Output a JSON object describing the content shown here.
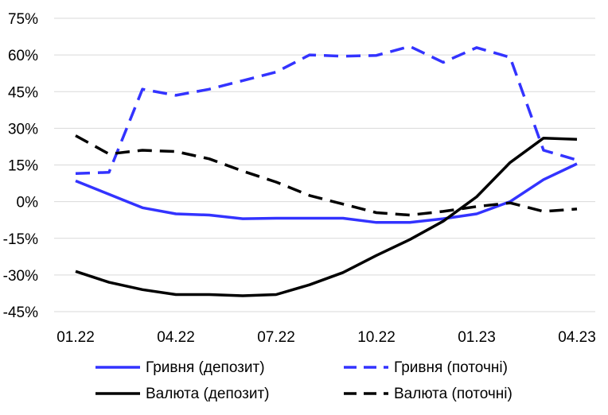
{
  "chart_data": {
    "type": "line",
    "title": "",
    "xlabel": "",
    "ylabel": "",
    "ylim": [
      -45,
      75
    ],
    "y_ticks": [
      75,
      60,
      45,
      30,
      15,
      0,
      -15,
      -30,
      -45
    ],
    "y_tick_labels": [
      "75%",
      "60%",
      "45%",
      "30%",
      "15%",
      "0%",
      "-15%",
      "-30%",
      "-45%"
    ],
    "x_tick_labels": [
      "01.22",
      "04.22",
      "07.22",
      "10.22",
      "01.23",
      "04.23"
    ],
    "grid": "horizontal",
    "legend_position": "bottom",
    "colors": {
      "blue": "#3333ff",
      "black": "#000000",
      "grid": "#d9d9d9"
    },
    "series": [
      {
        "name": "Гривня (депозит)",
        "style": "solid",
        "color": "#3333ff",
        "values": [
          8.5,
          3,
          -2.5,
          -5,
          -5.5,
          -7,
          -6.8,
          -6.8,
          -6.8,
          -8.5,
          -8.5,
          -7,
          -5,
          0,
          9,
          15.5
        ]
      },
      {
        "name": "Гривня (поточні)",
        "style": "dashed",
        "color": "#3333ff",
        "values": [
          11.5,
          12,
          46,
          43.5,
          46,
          49.5,
          53,
          60,
          59.5,
          59.8,
          63.5,
          57,
          63,
          59,
          21,
          17
        ]
      },
      {
        "name": "Валюта (депозит)",
        "style": "solid",
        "color": "#000000",
        "values": [
          -28.5,
          -33,
          -36,
          -38,
          -38,
          -38.5,
          -38,
          -34,
          -29,
          -22,
          -15.5,
          -8,
          2,
          16,
          26,
          25.5
        ]
      },
      {
        "name": "Валюта (поточні)",
        "style": "dashed",
        "color": "#000000",
        "values": [
          27,
          19.5,
          21,
          20.5,
          17.5,
          12.5,
          8,
          2.5,
          -1,
          -4.5,
          -5.5,
          -4,
          -2,
          -0.5,
          -4,
          -3
        ]
      }
    ]
  }
}
